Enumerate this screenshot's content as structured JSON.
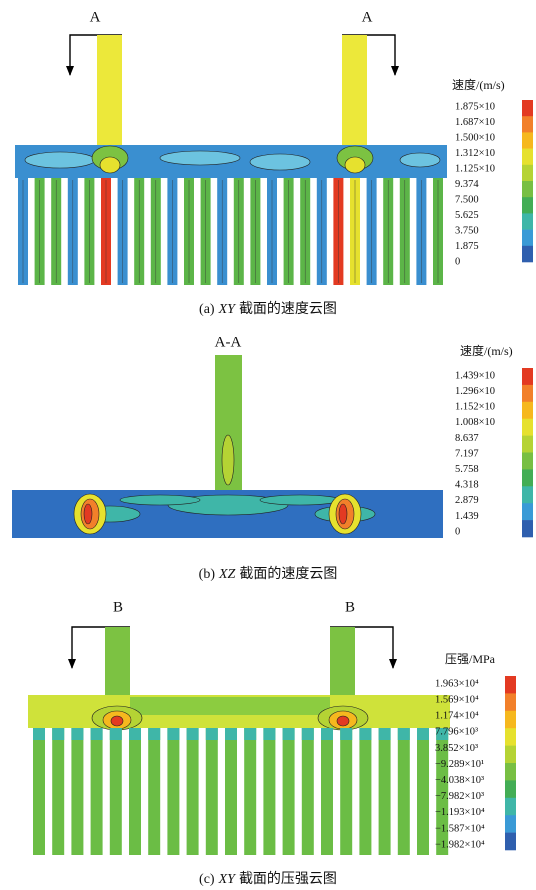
{
  "panels": [
    {
      "section_labels": [
        "A",
        "A"
      ],
      "legend": {
        "title": "速度/(m/s)",
        "labels": [
          "1.875×10",
          "1.687×10",
          "1.500×10",
          "1.312×10",
          "1.125×10",
          "9.374",
          "7.500",
          "5.625",
          "3.750",
          "1.875",
          "0"
        ]
      },
      "caption": {
        "label": "(a)",
        "plane": "XY",
        "text": "截面的速度云图"
      }
    },
    {
      "section_labels": [
        "A-A"
      ],
      "legend": {
        "title": "速度/(m/s)",
        "labels": [
          "1.439×10",
          "1.296×10",
          "1.152×10",
          "1.008×10",
          "8.637",
          "7.197",
          "5.758",
          "4.318",
          "2.879",
          "1.439",
          "0"
        ]
      },
      "caption": {
        "label": "(b)",
        "plane": "XZ",
        "text": "截面的速度云图"
      }
    },
    {
      "section_labels": [
        "B",
        "B"
      ],
      "legend": {
        "title": "压强/MPa",
        "labels": [
          "1.963×10⁴",
          "1.569×10⁴",
          "1.174×10⁴",
          "7.796×10³",
          "3.852×10³",
          "−9.289×10¹",
          "−4.038×10³",
          "−7.982×10³",
          "−1.193×10⁴",
          "−1.587×10⁴",
          "−1.982×10⁴"
        ]
      },
      "caption": {
        "label": "(c)",
        "plane": "XY",
        "text": "截面的压强云图"
      }
    }
  ]
}
